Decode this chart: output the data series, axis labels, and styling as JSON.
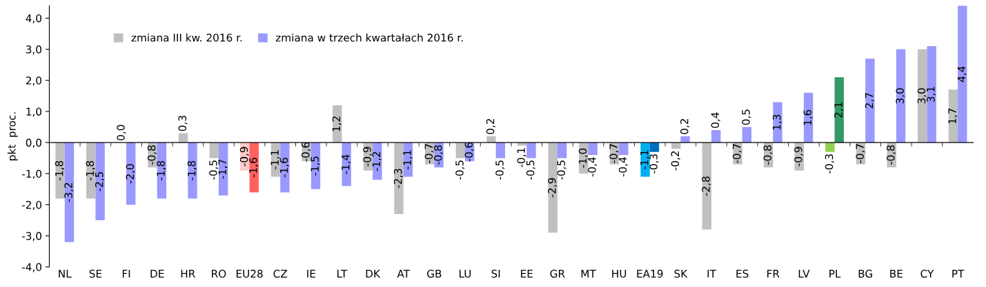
{
  "chart_data": {
    "type": "bar",
    "ylabel": "pkt  proc.",
    "categories": [
      "NL",
      "SE",
      "FI",
      "DE",
      "HR",
      "RO",
      "EU28",
      "CZ",
      "IE",
      "LT",
      "DK",
      "AT",
      "GB",
      "LU",
      "SI",
      "EE",
      "GR",
      "MT",
      "HU",
      "EA19",
      "SK",
      "IT",
      "ES",
      "FR",
      "LV",
      "PL",
      "BG",
      "BE",
      "CY",
      "PT"
    ],
    "series": [
      {
        "name": "zmiana III kw. 2016 r.",
        "color": "#c0c0c0",
        "colors": [
          "#c0c0c0",
          "#c0c0c0",
          "#c0c0c0",
          "#c0c0c0",
          "#c0c0c0",
          "#c0c0c0",
          "#ffc8c8",
          "#c0c0c0",
          "#c0c0c0",
          "#c0c0c0",
          "#c0c0c0",
          "#c0c0c0",
          "#c0c0c0",
          "#c0c0c0",
          "#c0c0c0",
          "#c0c0c0",
          "#c0c0c0",
          "#c0c0c0",
          "#c0c0c0",
          "#00b0f0",
          "#c0c0c0",
          "#c0c0c0",
          "#c0c0c0",
          "#c0c0c0",
          "#c0c0c0",
          "#92d050",
          "#c0c0c0",
          "#c0c0c0",
          "#c0c0c0",
          "#c0c0c0"
        ],
        "values": [
          -1.8,
          -1.8,
          0.0,
          -0.8,
          0.3,
          -0.5,
          -0.9,
          -1.1,
          -0.6,
          1.2,
          -0.9,
          -2.3,
          -0.7,
          -0.5,
          0.2,
          -0.1,
          -2.9,
          -1.0,
          -0.7,
          -1.1,
          -0.2,
          -2.8,
          -0.7,
          -0.8,
          -0.9,
          -0.3,
          -0.7,
          -0.8,
          3.0,
          1.7
        ],
        "value_labels": [
          "-1,8",
          "-1,8",
          "0,0",
          "-0,8",
          "0,3",
          "-0,5",
          "-0,9",
          "-1,1",
          "-0,6",
          "1,2",
          "-0,9",
          "-2,3",
          "-0,7",
          "-0,5",
          "0,2",
          "-0,1",
          "-2,9",
          "-1,0",
          "-0,7",
          "-1,1",
          "-0,2",
          "-2,8",
          "-0,7",
          "-0,8",
          "-0,9",
          "-0,3",
          "-0,7",
          "-0,8",
          "3,0",
          "1,7"
        ]
      },
      {
        "name": "zmiana w trzech kwartałach 2016 r.",
        "color": "#9999ff",
        "colors": [
          "#9999ff",
          "#9999ff",
          "#9999ff",
          "#9999ff",
          "#9999ff",
          "#9999ff",
          "#ff6060",
          "#9999ff",
          "#9999ff",
          "#9999ff",
          "#9999ff",
          "#9999ff",
          "#9999ff",
          "#9999ff",
          "#9999ff",
          "#9999ff",
          "#9999ff",
          "#9999ff",
          "#9999ff",
          "#0070c0",
          "#9999ff",
          "#9999ff",
          "#9999ff",
          "#9999ff",
          "#9999ff",
          "#339966",
          "#9999ff",
          "#9999ff",
          "#9999ff",
          "#9999ff"
        ],
        "values": [
          -3.2,
          -2.5,
          -2.0,
          -1.8,
          -1.8,
          -1.7,
          -1.6,
          -1.6,
          -1.5,
          -1.4,
          -1.2,
          -1.1,
          -0.8,
          -0.6,
          -0.5,
          -0.5,
          -0.5,
          -0.4,
          -0.4,
          -0.3,
          0.2,
          0.4,
          0.5,
          1.3,
          1.6,
          2.1,
          2.7,
          3.0,
          3.1,
          4.4
        ],
        "value_labels": [
          "-3,2",
          "-2,5",
          "-2,0",
          "-1,8",
          "-1,8",
          "-1,7",
          "-1,6",
          "-1,6",
          "-1,5",
          "-1,4",
          "-1,2",
          "-1,1",
          "-0,8",
          "-0,6",
          "-0,5",
          "-0,5",
          "-0,5",
          "-0,4",
          "-0,4",
          "-0,3",
          "0,2",
          "0,4",
          "0,5",
          "1,3",
          "1,6",
          "2,1",
          "2,7",
          "3,0",
          "3,1",
          "4,4"
        ]
      }
    ],
    "ylim": [
      -4.0,
      4.4
    ],
    "yticks": [
      {
        "value": -4.0,
        "label": "-4,0"
      },
      {
        "value": -3.0,
        "label": "-3,0"
      },
      {
        "value": -2.0,
        "label": "-2,0"
      },
      {
        "value": -1.0,
        "label": "-1,0"
      },
      {
        "value": 0.0,
        "label": "0,0"
      },
      {
        "value": 1.0,
        "label": "1,0"
      },
      {
        "value": 2.0,
        "label": "2,0"
      },
      {
        "value": 3.0,
        "label": "3,0"
      },
      {
        "value": 4.0,
        "label": "4,0"
      }
    ],
    "legend": "top left"
  }
}
